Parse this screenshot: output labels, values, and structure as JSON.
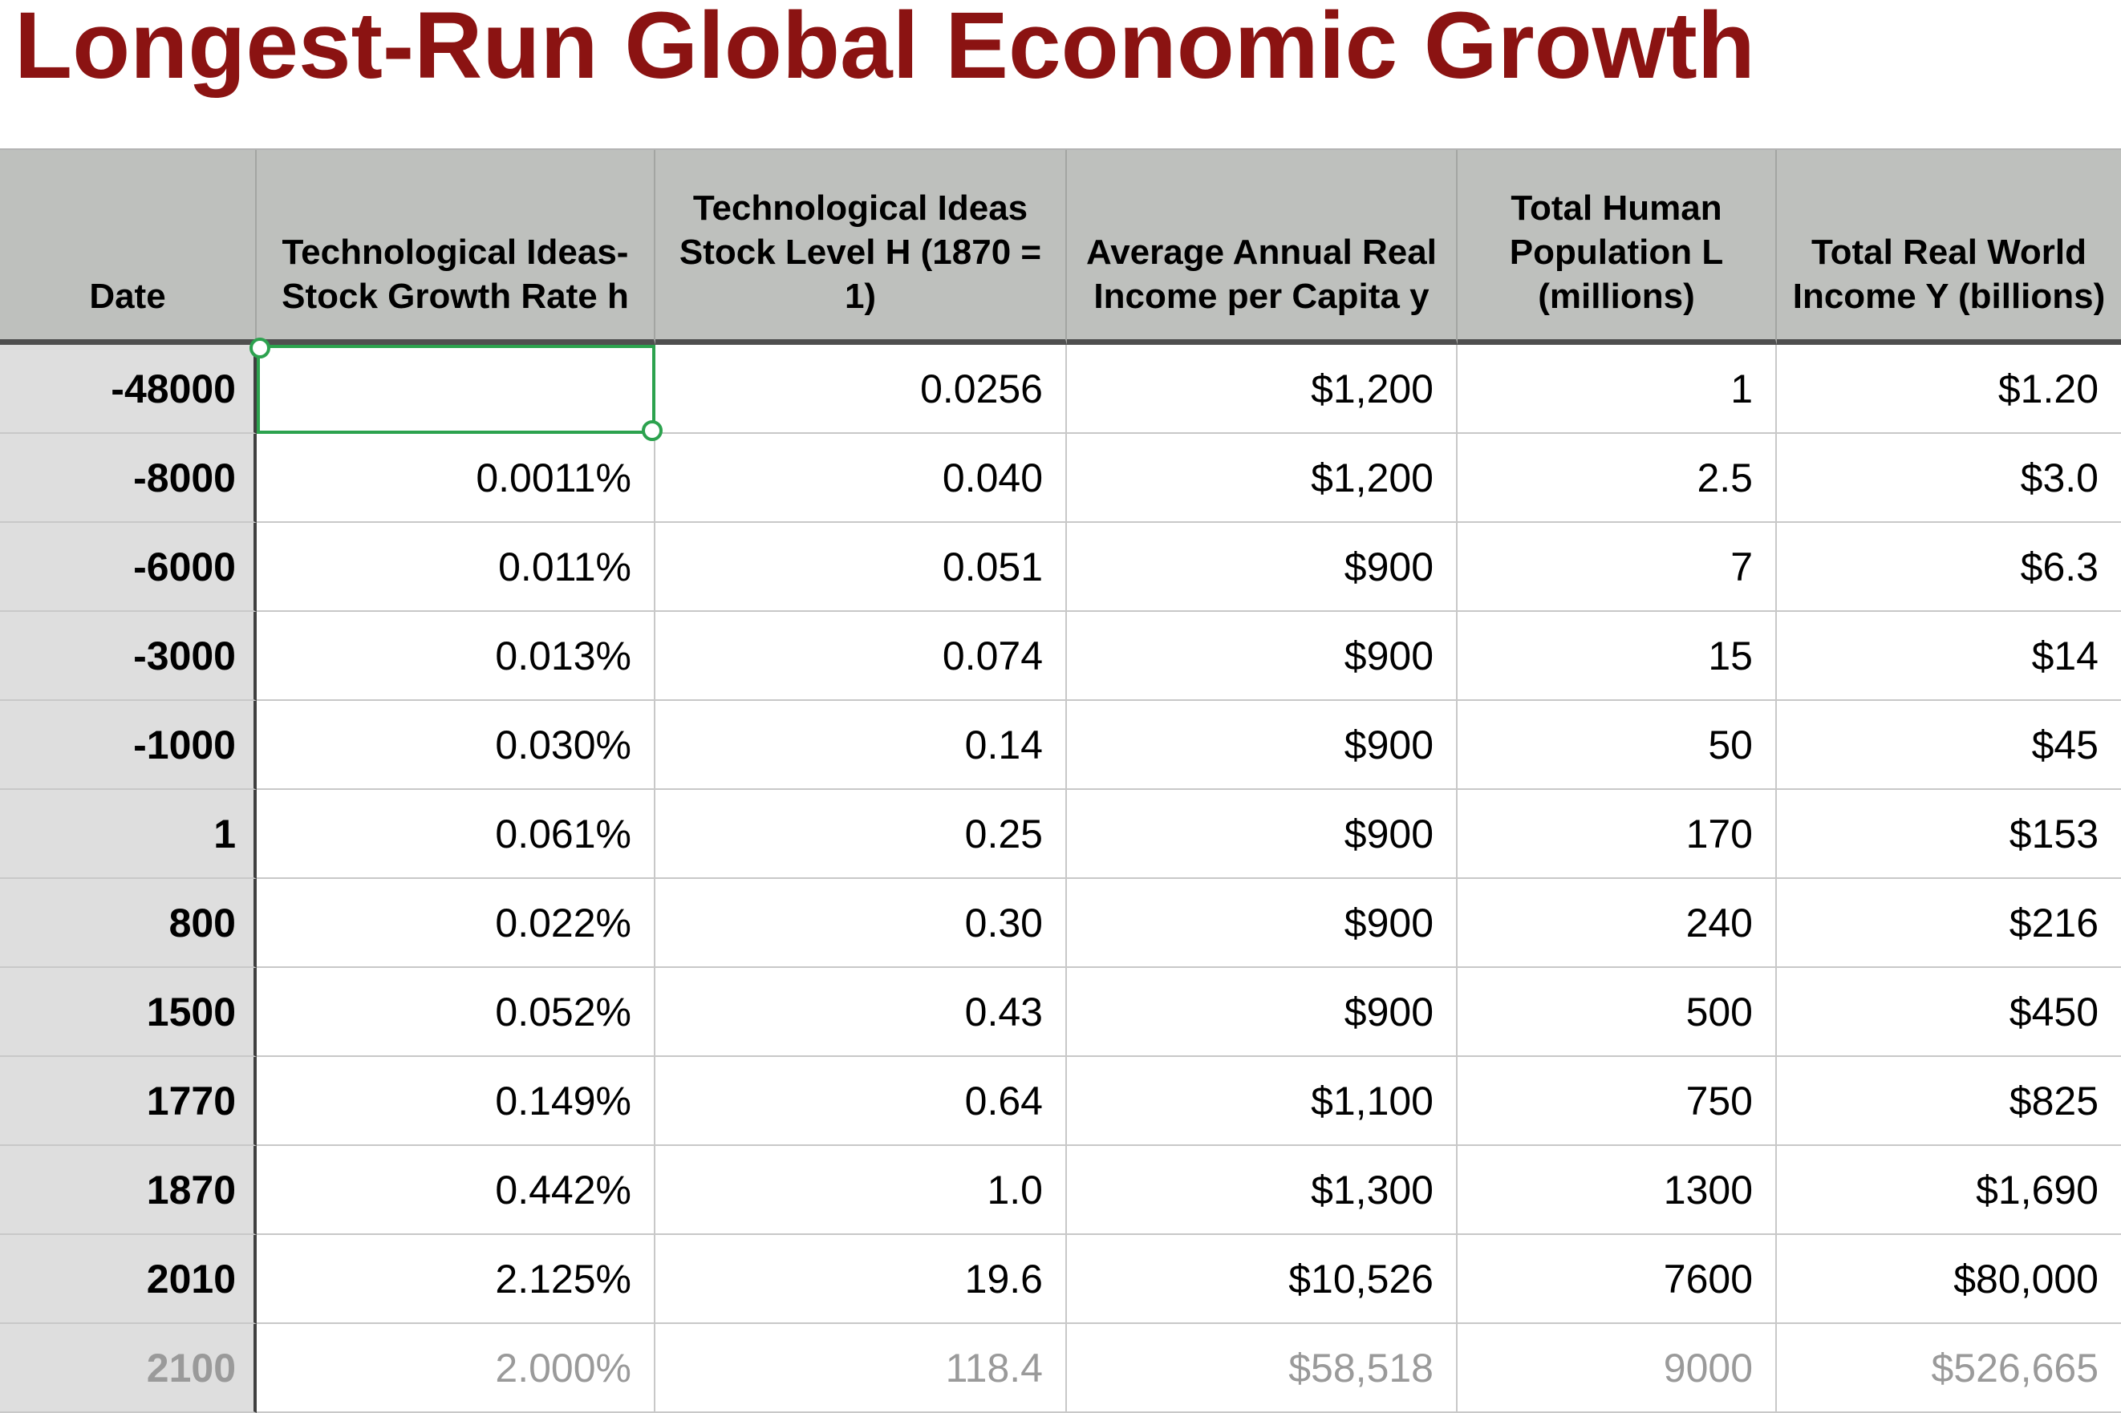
{
  "title": "Longest-Run Global Economic Growth",
  "colors": {
    "title_text": "#8b1312",
    "header_bg": "#bec0bd",
    "date_column_bg": "#dedede",
    "selection_green": "#2ca24e",
    "muted_row_text": "#9a9a9a",
    "gridline": "#c8c8c8",
    "header_divider": "#4f4f4f"
  },
  "selection": {
    "row_date": "-48000",
    "column": "Technological Ideas-Stock Growth Rate h",
    "value": ""
  },
  "table": {
    "columns": [
      {
        "label": "Date"
      },
      {
        "label": "Technological Ideas-Stock Growth Rate h"
      },
      {
        "label": "Technological Ideas Stock Level H (1870 = 1)"
      },
      {
        "label": "Average Annual Real Income per Capita y"
      },
      {
        "label": "Total Human Population L (millions)"
      },
      {
        "label": "Total Real World Income Y (billions)"
      }
    ],
    "rows": [
      {
        "date": "-48000",
        "h": "",
        "H": "0.0256",
        "y": "$1,200",
        "L": "1",
        "Y": "$1.20"
      },
      {
        "date": "-8000",
        "h": "0.0011%",
        "H": "0.040",
        "y": "$1,200",
        "L": "2.5",
        "Y": "$3.0"
      },
      {
        "date": "-6000",
        "h": "0.011%",
        "H": "0.051",
        "y": "$900",
        "L": "7",
        "Y": "$6.3"
      },
      {
        "date": "-3000",
        "h": "0.013%",
        "H": "0.074",
        "y": "$900",
        "L": "15",
        "Y": "$14"
      },
      {
        "date": "-1000",
        "h": "0.030%",
        "H": "0.14",
        "y": "$900",
        "L": "50",
        "Y": "$45"
      },
      {
        "date": "1",
        "h": "0.061%",
        "H": "0.25",
        "y": "$900",
        "L": "170",
        "Y": "$153"
      },
      {
        "date": "800",
        "h": "0.022%",
        "H": "0.30",
        "y": "$900",
        "L": "240",
        "Y": "$216"
      },
      {
        "date": "1500",
        "h": "0.052%",
        "H": "0.43",
        "y": "$900",
        "L": "500",
        "Y": "$450"
      },
      {
        "date": "1770",
        "h": "0.149%",
        "H": "0.64",
        "y": "$1,100",
        "L": "750",
        "Y": "$825"
      },
      {
        "date": "1870",
        "h": "0.442%",
        "H": "1.0",
        "y": "$1,300",
        "L": "1300",
        "Y": "$1,690"
      },
      {
        "date": "2010",
        "h": "2.125%",
        "H": "19.6",
        "y": "$10,526",
        "L": "7600",
        "Y": "$80,000"
      },
      {
        "date": "2100",
        "h": "2.000%",
        "H": "118.4",
        "y": "$58,518",
        "L": "9000",
        "Y": "$526,665"
      }
    ]
  }
}
